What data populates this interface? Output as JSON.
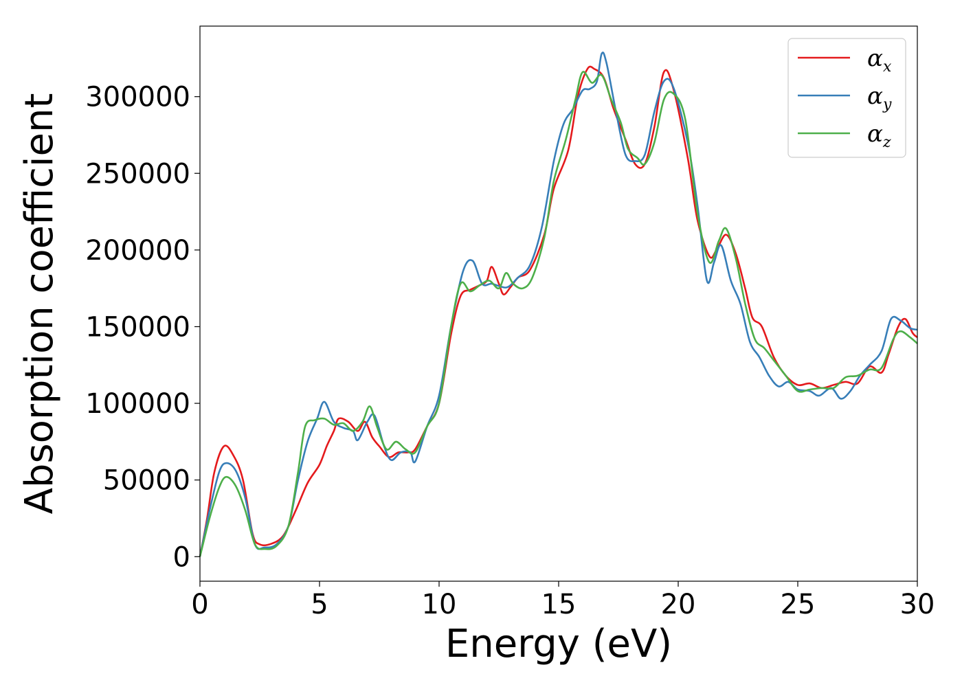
{
  "chart_data": {
    "type": "line",
    "xlabel": "Energy (eV)",
    "ylabel": "Absorption coefficient",
    "xlim": [
      0,
      30
    ],
    "ylim": [
      -16000,
      346000
    ],
    "xticks": [
      0,
      5,
      10,
      15,
      20,
      25,
      30
    ],
    "yticks": [
      0,
      50000,
      100000,
      150000,
      200000,
      250000,
      300000
    ],
    "grid": false,
    "legend_position": "top-right",
    "series": [
      {
        "name": "α",
        "subscript": "x",
        "color": "#e41a1c",
        "points": [
          [
            0,
            0
          ],
          [
            0.3,
            25000
          ],
          [
            0.6,
            55000
          ],
          [
            1.0,
            72000
          ],
          [
            1.4,
            66000
          ],
          [
            1.8,
            50000
          ],
          [
            2.2,
            15000
          ],
          [
            2.5,
            8000
          ],
          [
            3.0,
            8500
          ],
          [
            3.5,
            14000
          ],
          [
            4.0,
            30000
          ],
          [
            4.5,
            48000
          ],
          [
            5.0,
            60000
          ],
          [
            5.3,
            72000
          ],
          [
            5.6,
            82000
          ],
          [
            5.8,
            90000
          ],
          [
            6.2,
            88000
          ],
          [
            6.6,
            82000
          ],
          [
            6.9,
            88000
          ],
          [
            7.2,
            78000
          ],
          [
            7.5,
            72000
          ],
          [
            7.9,
            65000
          ],
          [
            8.3,
            68000
          ],
          [
            8.7,
            68000
          ],
          [
            9.0,
            70000
          ],
          [
            9.5,
            85000
          ],
          [
            10.0,
            100000
          ],
          [
            10.5,
            145000
          ],
          [
            10.9,
            170000
          ],
          [
            11.3,
            174000
          ],
          [
            11.7,
            177000
          ],
          [
            12.0,
            180000
          ],
          [
            12.2,
            189000
          ],
          [
            12.5,
            178000
          ],
          [
            12.7,
            171000
          ],
          [
            13.0,
            176000
          ],
          [
            13.3,
            182000
          ],
          [
            13.8,
            187000
          ],
          [
            14.4,
            210000
          ],
          [
            14.8,
            240000
          ],
          [
            15.4,
            265000
          ],
          [
            15.8,
            300000
          ],
          [
            16.2,
            318000
          ],
          [
            16.5,
            318000
          ],
          [
            16.9,
            312000
          ],
          [
            17.3,
            292000
          ],
          [
            17.8,
            272000
          ],
          [
            18.2,
            256000
          ],
          [
            18.6,
            256000
          ],
          [
            19.0,
            280000
          ],
          [
            19.4,
            316000
          ],
          [
            19.8,
            305000
          ],
          [
            20.4,
            260000
          ],
          [
            20.8,
            220000
          ],
          [
            21.3,
            196000
          ],
          [
            21.6,
            200000
          ],
          [
            22.0,
            210000
          ],
          [
            22.4,
            198000
          ],
          [
            22.8,
            175000
          ],
          [
            23.1,
            156000
          ],
          [
            23.5,
            150000
          ],
          [
            24.0,
            130000
          ],
          [
            24.5,
            118000
          ],
          [
            25.0,
            112000
          ],
          [
            25.5,
            113000
          ],
          [
            26.0,
            110000
          ],
          [
            26.5,
            112000
          ],
          [
            27.0,
            114000
          ],
          [
            27.5,
            113000
          ],
          [
            28.0,
            124000
          ],
          [
            28.5,
            120000
          ],
          [
            28.8,
            132000
          ],
          [
            29.2,
            150000
          ],
          [
            29.5,
            155000
          ],
          [
            29.8,
            146000
          ],
          [
            30.0,
            143000
          ]
        ]
      },
      {
        "name": "α",
        "subscript": "y",
        "color": "#377eb8",
        "points": [
          [
            0,
            0
          ],
          [
            0.4,
            30000
          ],
          [
            0.8,
            55000
          ],
          [
            1.1,
            61000
          ],
          [
            1.5,
            56000
          ],
          [
            1.9,
            38000
          ],
          [
            2.3,
            8000
          ],
          [
            2.7,
            6000
          ],
          [
            3.2,
            8000
          ],
          [
            3.7,
            20000
          ],
          [
            4.1,
            50000
          ],
          [
            4.5,
            75000
          ],
          [
            4.9,
            90000
          ],
          [
            5.2,
            101000
          ],
          [
            5.6,
            88000
          ],
          [
            6.0,
            84000
          ],
          [
            6.4,
            82000
          ],
          [
            6.6,
            76000
          ],
          [
            7.0,
            88000
          ],
          [
            7.3,
            92000
          ],
          [
            7.7,
            72000
          ],
          [
            8.0,
            63000
          ],
          [
            8.4,
            68000
          ],
          [
            8.8,
            68000
          ],
          [
            9.0,
            62000
          ],
          [
            9.5,
            85000
          ],
          [
            10.0,
            105000
          ],
          [
            10.5,
            150000
          ],
          [
            11.0,
            186000
          ],
          [
            11.4,
            193000
          ],
          [
            11.8,
            178000
          ],
          [
            12.2,
            178000
          ],
          [
            12.6,
            176000
          ],
          [
            12.9,
            176000
          ],
          [
            13.3,
            182000
          ],
          [
            13.8,
            190000
          ],
          [
            14.3,
            215000
          ],
          [
            14.8,
            258000
          ],
          [
            15.2,
            282000
          ],
          [
            15.6,
            292000
          ],
          [
            16.0,
            304000
          ],
          [
            16.3,
            305000
          ],
          [
            16.6,
            310000
          ],
          [
            16.8,
            328000
          ],
          [
            17.0,
            322000
          ],
          [
            17.4,
            290000
          ],
          [
            17.8,
            262000
          ],
          [
            18.2,
            258000
          ],
          [
            18.6,
            262000
          ],
          [
            19.0,
            290000
          ],
          [
            19.4,
            310000
          ],
          [
            19.8,
            306000
          ],
          [
            20.4,
            270000
          ],
          [
            20.8,
            230000
          ],
          [
            21.2,
            180000
          ],
          [
            21.5,
            192000
          ],
          [
            21.8,
            203000
          ],
          [
            22.2,
            180000
          ],
          [
            22.6,
            165000
          ],
          [
            23.0,
            140000
          ],
          [
            23.4,
            130000
          ],
          [
            23.8,
            118000
          ],
          [
            24.2,
            111000
          ],
          [
            24.6,
            114000
          ],
          [
            25.0,
            109000
          ],
          [
            25.5,
            108000
          ],
          [
            25.9,
            105000
          ],
          [
            26.4,
            110000
          ],
          [
            26.8,
            103000
          ],
          [
            27.2,
            108000
          ],
          [
            27.6,
            118000
          ],
          [
            28.0,
            125000
          ],
          [
            28.5,
            134000
          ],
          [
            28.9,
            155000
          ],
          [
            29.3,
            154000
          ],
          [
            29.7,
            149000
          ],
          [
            30.0,
            148000
          ]
        ]
      },
      {
        "name": "α",
        "subscript": "z",
        "color": "#4daf4a",
        "points": [
          [
            0,
            0
          ],
          [
            0.4,
            25000
          ],
          [
            0.8,
            45000
          ],
          [
            1.1,
            52000
          ],
          [
            1.5,
            46000
          ],
          [
            1.9,
            30000
          ],
          [
            2.3,
            8000
          ],
          [
            2.7,
            5000
          ],
          [
            3.2,
            7000
          ],
          [
            3.7,
            20000
          ],
          [
            4.1,
            55000
          ],
          [
            4.4,
            85000
          ],
          [
            4.8,
            89000
          ],
          [
            5.2,
            90000
          ],
          [
            5.6,
            86000
          ],
          [
            6.0,
            87000
          ],
          [
            6.4,
            82000
          ],
          [
            6.8,
            88000
          ],
          [
            7.1,
            98000
          ],
          [
            7.4,
            85000
          ],
          [
            7.8,
            70000
          ],
          [
            8.2,
            75000
          ],
          [
            8.6,
            70000
          ],
          [
            9.0,
            68000
          ],
          [
            9.5,
            85000
          ],
          [
            10.0,
            100000
          ],
          [
            10.5,
            150000
          ],
          [
            10.9,
            178000
          ],
          [
            11.3,
            173000
          ],
          [
            11.7,
            177000
          ],
          [
            12.1,
            180000
          ],
          [
            12.5,
            175000
          ],
          [
            12.8,
            185000
          ],
          [
            13.1,
            178000
          ],
          [
            13.5,
            175000
          ],
          [
            13.9,
            182000
          ],
          [
            14.4,
            208000
          ],
          [
            14.8,
            245000
          ],
          [
            15.3,
            272000
          ],
          [
            15.7,
            298000
          ],
          [
            16.0,
            316000
          ],
          [
            16.4,
            309000
          ],
          [
            16.8,
            314000
          ],
          [
            17.2,
            298000
          ],
          [
            17.6,
            283000
          ],
          [
            17.9,
            266000
          ],
          [
            18.3,
            260000
          ],
          [
            18.6,
            256000
          ],
          [
            19.0,
            270000
          ],
          [
            19.4,
            298000
          ],
          [
            19.8,
            302000
          ],
          [
            20.3,
            285000
          ],
          [
            20.8,
            225000
          ],
          [
            21.3,
            192000
          ],
          [
            21.7,
            206000
          ],
          [
            22.0,
            214000
          ],
          [
            22.4,
            195000
          ],
          [
            22.8,
            165000
          ],
          [
            23.2,
            142000
          ],
          [
            23.6,
            136000
          ],
          [
            24.0,
            128000
          ],
          [
            24.5,
            118000
          ],
          [
            25.0,
            108000
          ],
          [
            25.5,
            109000
          ],
          [
            26.0,
            110000
          ],
          [
            26.5,
            110000
          ],
          [
            27.0,
            117000
          ],
          [
            27.5,
            118000
          ],
          [
            28.0,
            122000
          ],
          [
            28.5,
            123000
          ],
          [
            29.0,
            142000
          ],
          [
            29.3,
            147000
          ],
          [
            29.7,
            143000
          ],
          [
            30.0,
            139000
          ]
        ]
      }
    ]
  }
}
